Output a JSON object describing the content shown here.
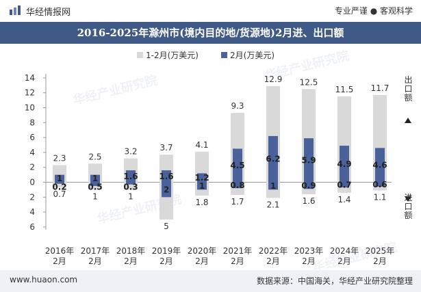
{
  "header": {
    "brand": "华经情报网",
    "slogan": "专业严谨 ● 客观科学"
  },
  "title": "2016-2025年滁州市(境内目的地/货源地)2月进、出口额",
  "footer": {
    "site": "www.huaon.com",
    "source": "数据来源：中国海关，华经产业研究院整理"
  },
  "watermark": "华经产业研究院",
  "colors": {
    "title_bg": "#3f5a87",
    "series_cum": "#d9d9d9",
    "series_feb": "#4a6199",
    "footer_bg": "#eef1f6"
  },
  "chart_data": {
    "type": "bar",
    "categories": [
      "2016年\n2月",
      "2017年\n2月",
      "2018年\n2月",
      "2019年\n2月",
      "2020年\n2月",
      "2021年\n2月",
      "2022年\n2月",
      "2023年\n2月",
      "2024年\n2月",
      "2025年\n2月"
    ],
    "series": [
      {
        "name": "1-2月(万美元)",
        "export": [
          2.3,
          2.5,
          3.2,
          3.7,
          4.1,
          9.3,
          12.9,
          12.5,
          11.5,
          11.7
        ],
        "import": [
          0.7,
          1,
          1,
          5,
          1.8,
          1.7,
          2.1,
          1.6,
          1.4,
          1.1
        ]
      },
      {
        "name": "2月(万美元)",
        "export": [
          1,
          1,
          1.6,
          1.6,
          1.2,
          4.5,
          6.2,
          5.9,
          4.9,
          4.6
        ],
        "import": [
          0.2,
          0.5,
          0.3,
          2,
          1,
          0.8,
          1,
          0.9,
          0.7,
          0.6
        ]
      }
    ],
    "y_ticks_upper": [
      0,
      2,
      4,
      6,
      8,
      10,
      12,
      14
    ],
    "y_ticks_lower": [
      2,
      4,
      6
    ],
    "ylim": [
      -6,
      14
    ],
    "right_label_export": "出口额",
    "right_label_import": "进口额",
    "legend_position": "top",
    "grid": false
  }
}
